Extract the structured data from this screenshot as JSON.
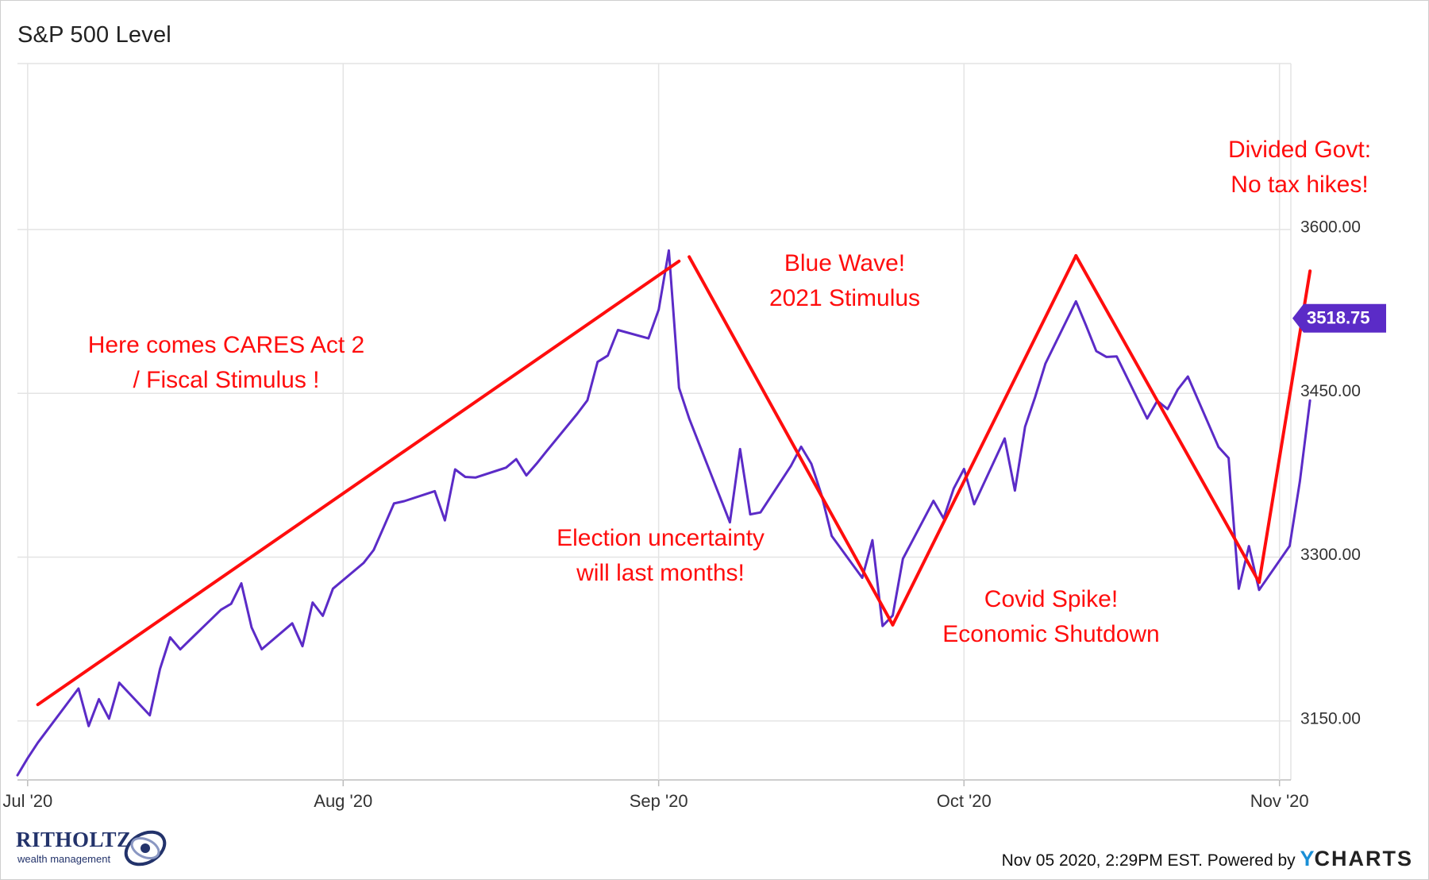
{
  "chart_data": {
    "type": "line",
    "title": "S&P 500 Level",
    "y_ticks": [
      3150,
      3300,
      3450,
      3600
    ],
    "y_tick_labels": [
      "3150.00",
      "3300.00",
      "3450.00",
      "3600.00"
    ],
    "x_tick_labels": [
      "Jul '20",
      "Aug '20",
      "Sep '20",
      "Oct '20",
      "Nov '20"
    ],
    "x_tick_dates": [
      "2020-07-01",
      "2020-08-01",
      "2020-09-01",
      "2020-10-01",
      "2020-11-01"
    ],
    "ylim": [
      3096,
      3752
    ],
    "xlim": [
      "2020-06-30",
      "2020-11-04"
    ],
    "grid": true,
    "series": [
      {
        "color": "#5b2bc7",
        "x": [
          "2020-06-30",
          "2020-07-01",
          "2020-07-02",
          "2020-07-06",
          "2020-07-07",
          "2020-07-08",
          "2020-07-09",
          "2020-07-10",
          "2020-07-13",
          "2020-07-14",
          "2020-07-15",
          "2020-07-16",
          "2020-07-17",
          "2020-07-20",
          "2020-07-21",
          "2020-07-22",
          "2020-07-23",
          "2020-07-24",
          "2020-07-27",
          "2020-07-28",
          "2020-07-29",
          "2020-07-30",
          "2020-07-31",
          "2020-08-03",
          "2020-08-04",
          "2020-08-05",
          "2020-08-06",
          "2020-08-07",
          "2020-08-10",
          "2020-08-11",
          "2020-08-12",
          "2020-08-13",
          "2020-08-14",
          "2020-08-17",
          "2020-08-18",
          "2020-08-19",
          "2020-08-20",
          "2020-08-21",
          "2020-08-24",
          "2020-08-25",
          "2020-08-26",
          "2020-08-27",
          "2020-08-28",
          "2020-08-31",
          "2020-09-01",
          "2020-09-02",
          "2020-09-03",
          "2020-09-04",
          "2020-09-08",
          "2020-09-09",
          "2020-09-10",
          "2020-09-11",
          "2020-09-14",
          "2020-09-15",
          "2020-09-16",
          "2020-09-17",
          "2020-09-18",
          "2020-09-21",
          "2020-09-22",
          "2020-09-23",
          "2020-09-24",
          "2020-09-25",
          "2020-09-28",
          "2020-09-29",
          "2020-09-30",
          "2020-10-01",
          "2020-10-02",
          "2020-10-05",
          "2020-10-06",
          "2020-10-07",
          "2020-10-08",
          "2020-10-09",
          "2020-10-12",
          "2020-10-13",
          "2020-10-14",
          "2020-10-15",
          "2020-10-16",
          "2020-10-19",
          "2020-10-20",
          "2020-10-21",
          "2020-10-22",
          "2020-10-23",
          "2020-10-26",
          "2020-10-27",
          "2020-10-28",
          "2020-10-29",
          "2020-10-30",
          "2020-11-02",
          "2020-11-03",
          "2020-11-04"
        ],
        "values": [
          3100.29,
          3115.86,
          3130.01,
          3179.72,
          3145.32,
          3169.94,
          3152.05,
          3185.04,
          3155.22,
          3197.52,
          3226.56,
          3215.57,
          3224.73,
          3251.84,
          3257.3,
          3276.02,
          3235.66,
          3215.63,
          3239.41,
          3218.44,
          3258.44,
          3246.22,
          3271.12,
          3294.61,
          3306.51,
          3327.77,
          3349.16,
          3351.28,
          3360.47,
          3333.69,
          3380.35,
          3373.43,
          3372.85,
          3381.99,
          3389.78,
          3374.85,
          3385.51,
          3397.16,
          3431.28,
          3443.62,
          3478.73,
          3484.55,
          3508.01,
          3500.31,
          3526.65,
          3580.84,
          3455.06,
          3426.96,
          3331.84,
          3398.96,
          3339.19,
          3340.97,
          3383.54,
          3401.2,
          3385.49,
          3357.01,
          3319.47,
          3281.06,
          3315.57,
          3236.92,
          3246.59,
          3298.46,
          3351.6,
          3335.47,
          3363.0,
          3380.8,
          3348.44,
          3408.63,
          3360.97,
          3419.44,
          3446.83,
          3477.14,
          3534.22,
          3511.93,
          3488.67,
          3483.34,
          3483.81,
          3426.92,
          3443.12,
          3435.56,
          3453.49,
          3465.39,
          3400.97,
          3390.68,
          3271.03,
          3310.11,
          3269.96,
          3310.24,
          3369.16,
          3443.44
        ]
      }
    ],
    "last_value_label": "3518.75",
    "annotations": [
      {
        "lines": [
          "Here comes CARES Act 2",
          "/ Fiscal Stimulus !"
        ]
      },
      {
        "lines": [
          "Election uncertainty",
          "will last months!"
        ]
      },
      {
        "lines": [
          "Blue Wave!",
          "2021 Stimulus"
        ]
      },
      {
        "lines": [
          "Divided Govt:",
          "No tax hikes!"
        ]
      },
      {
        "lines": [
          "Covid Spike!",
          "Economic Shutdown"
        ]
      }
    ],
    "trend_lines": [
      {
        "from": [
          "2020-07-02",
          3165
        ],
        "to": [
          "2020-09-03",
          3571
        ]
      },
      {
        "from": [
          "2020-09-04",
          3575
        ],
        "to": [
          "2020-09-24",
          3238
        ]
      },
      {
        "from": [
          "2020-09-24",
          3238
        ],
        "to": [
          "2020-10-12",
          3576
        ]
      },
      {
        "from": [
          "2020-10-12",
          3576
        ],
        "to": [
          "2020-10-30",
          3277
        ]
      },
      {
        "from": [
          "2020-10-30",
          3277
        ],
        "to": [
          "2020-11-04",
          3562
        ]
      }
    ]
  },
  "branding": {
    "logo_text": "RITHOLTZ",
    "logo_subtext": "wealth management",
    "footer_text": "Nov 05 2020, 2:29PM EST. Powered by",
    "footer_brand_y": "Y",
    "footer_brand_rest": "CHARTS"
  },
  "colors": {
    "line": "#5b2bc7",
    "trend": "#ff0d0d",
    "annotation": "#ff0d0d",
    "grid": "#e4e4e4",
    "label_bg": "#5b2bc7"
  }
}
